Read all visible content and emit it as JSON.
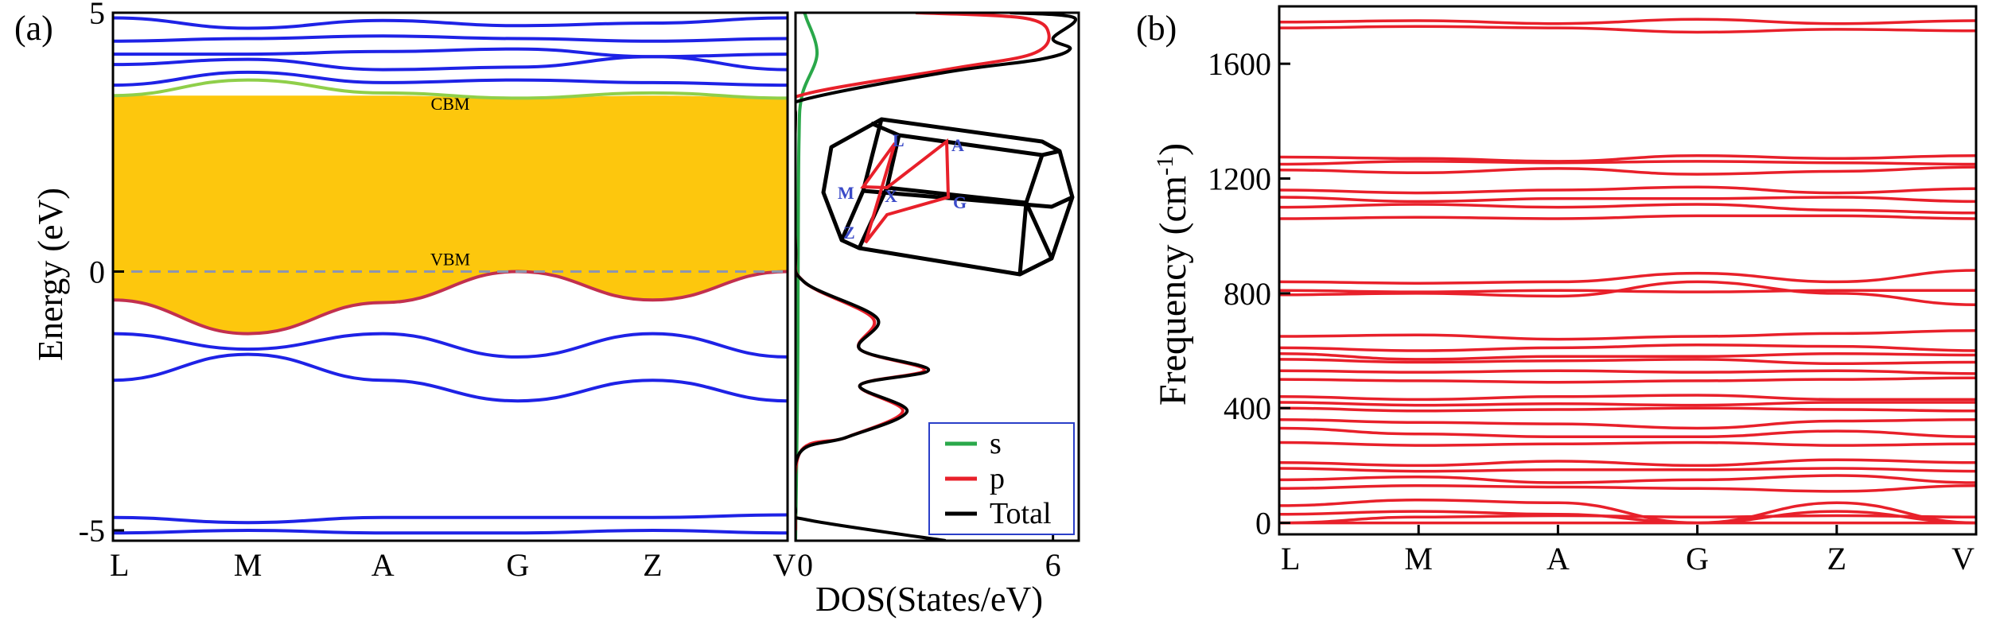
{
  "panels": {
    "a": {
      "label": "(a)",
      "band_structure": {
        "type": "line",
        "ylabel": "Energy (eV)",
        "ylim": [
          -5.2,
          5.0
        ],
        "y_ticks": [
          "5",
          "0",
          "-5"
        ],
        "y_tick_values": [
          5,
          0,
          -5
        ],
        "kpath": [
          "L",
          "M",
          "A",
          "G",
          "Z",
          "V"
        ],
        "gap_region": {
          "top": 3.4,
          "bottom_curve": [
            -0.55,
            -1.2,
            -0.6,
            0.0,
            -0.55,
            0.0
          ],
          "color": "#FDC70D"
        },
        "fermi_level": 0,
        "annotations": [
          {
            "text": "CBM",
            "y": 3.0
          },
          {
            "text": "VBM",
            "y": 0.0
          }
        ],
        "series": [
          {
            "name": "cbm-band",
            "color": "#8FCF4A",
            "values": [
              3.4,
              3.7,
              3.45,
              3.35,
              3.45,
              3.35
            ]
          },
          {
            "name": "vbm-band",
            "color": "#C2304E",
            "values": [
              -0.55,
              -1.2,
              -0.6,
              0.0,
              -0.55,
              0.0
            ]
          },
          {
            "name": "band-c1",
            "color": "#1E22E6",
            "values": [
              3.6,
              3.85,
              3.65,
              3.7,
              3.65,
              3.6
            ]
          },
          {
            "name": "band-c2",
            "color": "#1E22E6",
            "values": [
              4.0,
              4.1,
              3.9,
              3.95,
              4.15,
              3.9
            ]
          },
          {
            "name": "band-c3",
            "color": "#1E22E6",
            "values": [
              4.2,
              4.2,
              4.25,
              4.3,
              4.15,
              4.2
            ]
          },
          {
            "name": "band-c4",
            "color": "#1E22E6",
            "values": [
              4.45,
              4.5,
              4.55,
              4.5,
              4.45,
              4.5
            ]
          },
          {
            "name": "band-c5",
            "color": "#1E22E6",
            "values": [
              4.9,
              4.7,
              4.85,
              4.75,
              4.8,
              4.9
            ]
          },
          {
            "name": "band-v1",
            "color": "#1E22E6",
            "values": [
              -1.2,
              -1.5,
              -1.2,
              -1.65,
              -1.2,
              -1.65
            ]
          },
          {
            "name": "band-v2",
            "color": "#1E22E6",
            "values": [
              -2.1,
              -1.6,
              -2.1,
              -2.5,
              -2.1,
              -2.5
            ]
          },
          {
            "name": "band-v3",
            "color": "#1E22E6",
            "values": [
              -4.75,
              -4.85,
              -4.75,
              -4.75,
              -4.75,
              -4.7
            ]
          },
          {
            "name": "band-v4",
            "color": "#1E22E6",
            "values": [
              -5.05,
              -5.0,
              -5.05,
              -5.05,
              -5.0,
              -5.05
            ]
          }
        ]
      },
      "dos": {
        "type": "line",
        "xlabel": "DOS(States/eV)",
        "x_ticks": [
          "0",
          "6"
        ],
        "x_tick_values": [
          0,
          6
        ],
        "xlim": [
          0,
          6.6
        ],
        "ylim": [
          -5.2,
          5.0
        ],
        "legend": {
          "position": "bottom-right",
          "entries": [
            {
              "name": "s",
              "color": "#2AA84A"
            },
            {
              "name": "p",
              "color": "#E8202A"
            },
            {
              "name": "Total",
              "color": "#000000"
            }
          ]
        },
        "series": [
          {
            "name": "s",
            "color": "#2AA84A",
            "points": [
              [
                0.0,
                -5.2
              ],
              [
                0.02,
                -4.0
              ],
              [
                0.05,
                -2.0
              ],
              [
                0.06,
                0.0
              ],
              [
                0.08,
                2.5
              ],
              [
                0.15,
                3.4
              ],
              [
                0.5,
                4.2
              ],
              [
                0.25,
                4.9
              ],
              [
                0.2,
                5.0
              ]
            ]
          },
          {
            "name": "p",
            "color": "#E8202A",
            "points": [
              [
                0.0,
                -5.0
              ],
              [
                0.1,
                -3.5
              ],
              [
                1.2,
                -3.2
              ],
              [
                2.5,
                -2.7
              ],
              [
                1.5,
                -2.2
              ],
              [
                3.0,
                -1.9
              ],
              [
                1.5,
                -1.5
              ],
              [
                1.8,
                -0.9
              ],
              [
                0.2,
                -0.2
              ],
              [
                0.0,
                0.5
              ],
              [
                0.0,
                3.0
              ],
              [
                0.1,
                3.4
              ],
              [
                3.5,
                3.9
              ],
              [
                5.5,
                4.2
              ],
              [
                5.9,
                4.6
              ],
              [
                5.3,
                4.9
              ],
              [
                2.8,
                5.0
              ]
            ]
          },
          {
            "name": "Total",
            "color": "#000000",
            "points": [
              [
                3.5,
                -5.2
              ],
              [
                0.3,
                -4.8
              ],
              [
                0.0,
                -4.6
              ],
              [
                0.1,
                -3.5
              ],
              [
                1.2,
                -3.2
              ],
              [
                2.6,
                -2.7
              ],
              [
                1.5,
                -2.2
              ],
              [
                3.1,
                -1.9
              ],
              [
                1.5,
                -1.5
              ],
              [
                1.9,
                -0.9
              ],
              [
                0.2,
                -0.2
              ],
              [
                0.0,
                0.5
              ],
              [
                0.0,
                3.0
              ],
              [
                0.1,
                3.3
              ],
              [
                3.5,
                3.85
              ],
              [
                5.7,
                4.1
              ],
              [
                6.4,
                4.3
              ],
              [
                6.0,
                4.5
              ],
              [
                6.5,
                4.9
              ],
              [
                5.0,
                5.0
              ]
            ]
          }
        ]
      },
      "brillouin_zone": {
        "labels": [
          "L",
          "A",
          "M",
          "X",
          "G",
          "Z"
        ]
      }
    },
    "b": {
      "label": "(b)",
      "phonon": {
        "type": "line",
        "ylabel_main": "Frequency (cm",
        "ylabel_sup": "-1",
        "ylabel_end": ")",
        "ylim": [
          -40,
          1800
        ],
        "y_ticks": [
          "1600",
          "1200",
          "800",
          "400",
          "0"
        ],
        "y_tick_values": [
          1600,
          1200,
          800,
          400,
          0
        ],
        "kpath": [
          "L",
          "M",
          "A",
          "G",
          "Z",
          "V"
        ],
        "color": "#E8202A",
        "series": [
          [
            1745,
            1750,
            1740,
            1755,
            1740,
            1750
          ],
          [
            1725,
            1730,
            1725,
            1710,
            1720,
            1715
          ],
          [
            1275,
            1270,
            1260,
            1280,
            1270,
            1280
          ],
          [
            1250,
            1260,
            1255,
            1260,
            1255,
            1250
          ],
          [
            1230,
            1220,
            1235,
            1215,
            1225,
            1240
          ],
          [
            1160,
            1150,
            1160,
            1170,
            1150,
            1165
          ],
          [
            1135,
            1120,
            1130,
            1130,
            1135,
            1120
          ],
          [
            1100,
            1110,
            1100,
            1110,
            1090,
            1080
          ],
          [
            1060,
            1065,
            1060,
            1070,
            1070,
            1060
          ],
          [
            840,
            835,
            840,
            870,
            840,
            880
          ],
          [
            810,
            805,
            810,
            805,
            810,
            810
          ],
          [
            795,
            800,
            790,
            840,
            800,
            760
          ],
          [
            650,
            655,
            640,
            650,
            660,
            670
          ],
          [
            610,
            600,
            610,
            620,
            615,
            600
          ],
          [
            590,
            570,
            580,
            580,
            590,
            585
          ],
          [
            570,
            560,
            565,
            570,
            555,
            560
          ],
          [
            530,
            525,
            530,
            525,
            530,
            520
          ],
          [
            500,
            495,
            490,
            495,
            500,
            505
          ],
          [
            440,
            430,
            440,
            445,
            430,
            430
          ],
          [
            420,
            410,
            415,
            410,
            420,
            420
          ],
          [
            400,
            390,
            395,
            400,
            395,
            390
          ],
          [
            360,
            350,
            345,
            330,
            355,
            360
          ],
          [
            330,
            310,
            300,
            300,
            320,
            300
          ],
          [
            280,
            270,
            275,
            280,
            270,
            275
          ],
          [
            210,
            200,
            215,
            200,
            220,
            210
          ],
          [
            190,
            180,
            185,
            185,
            190,
            180
          ],
          [
            150,
            160,
            140,
            150,
            165,
            140
          ],
          [
            120,
            130,
            125,
            120,
            110,
            130
          ],
          [
            60,
            80,
            70,
            0,
            70,
            0
          ],
          [
            30,
            40,
            30,
            0,
            40,
            0
          ],
          [
            0,
            20,
            25,
            20,
            25,
            20
          ],
          [
            0,
            0,
            0,
            0,
            0,
            0
          ]
        ]
      }
    }
  }
}
